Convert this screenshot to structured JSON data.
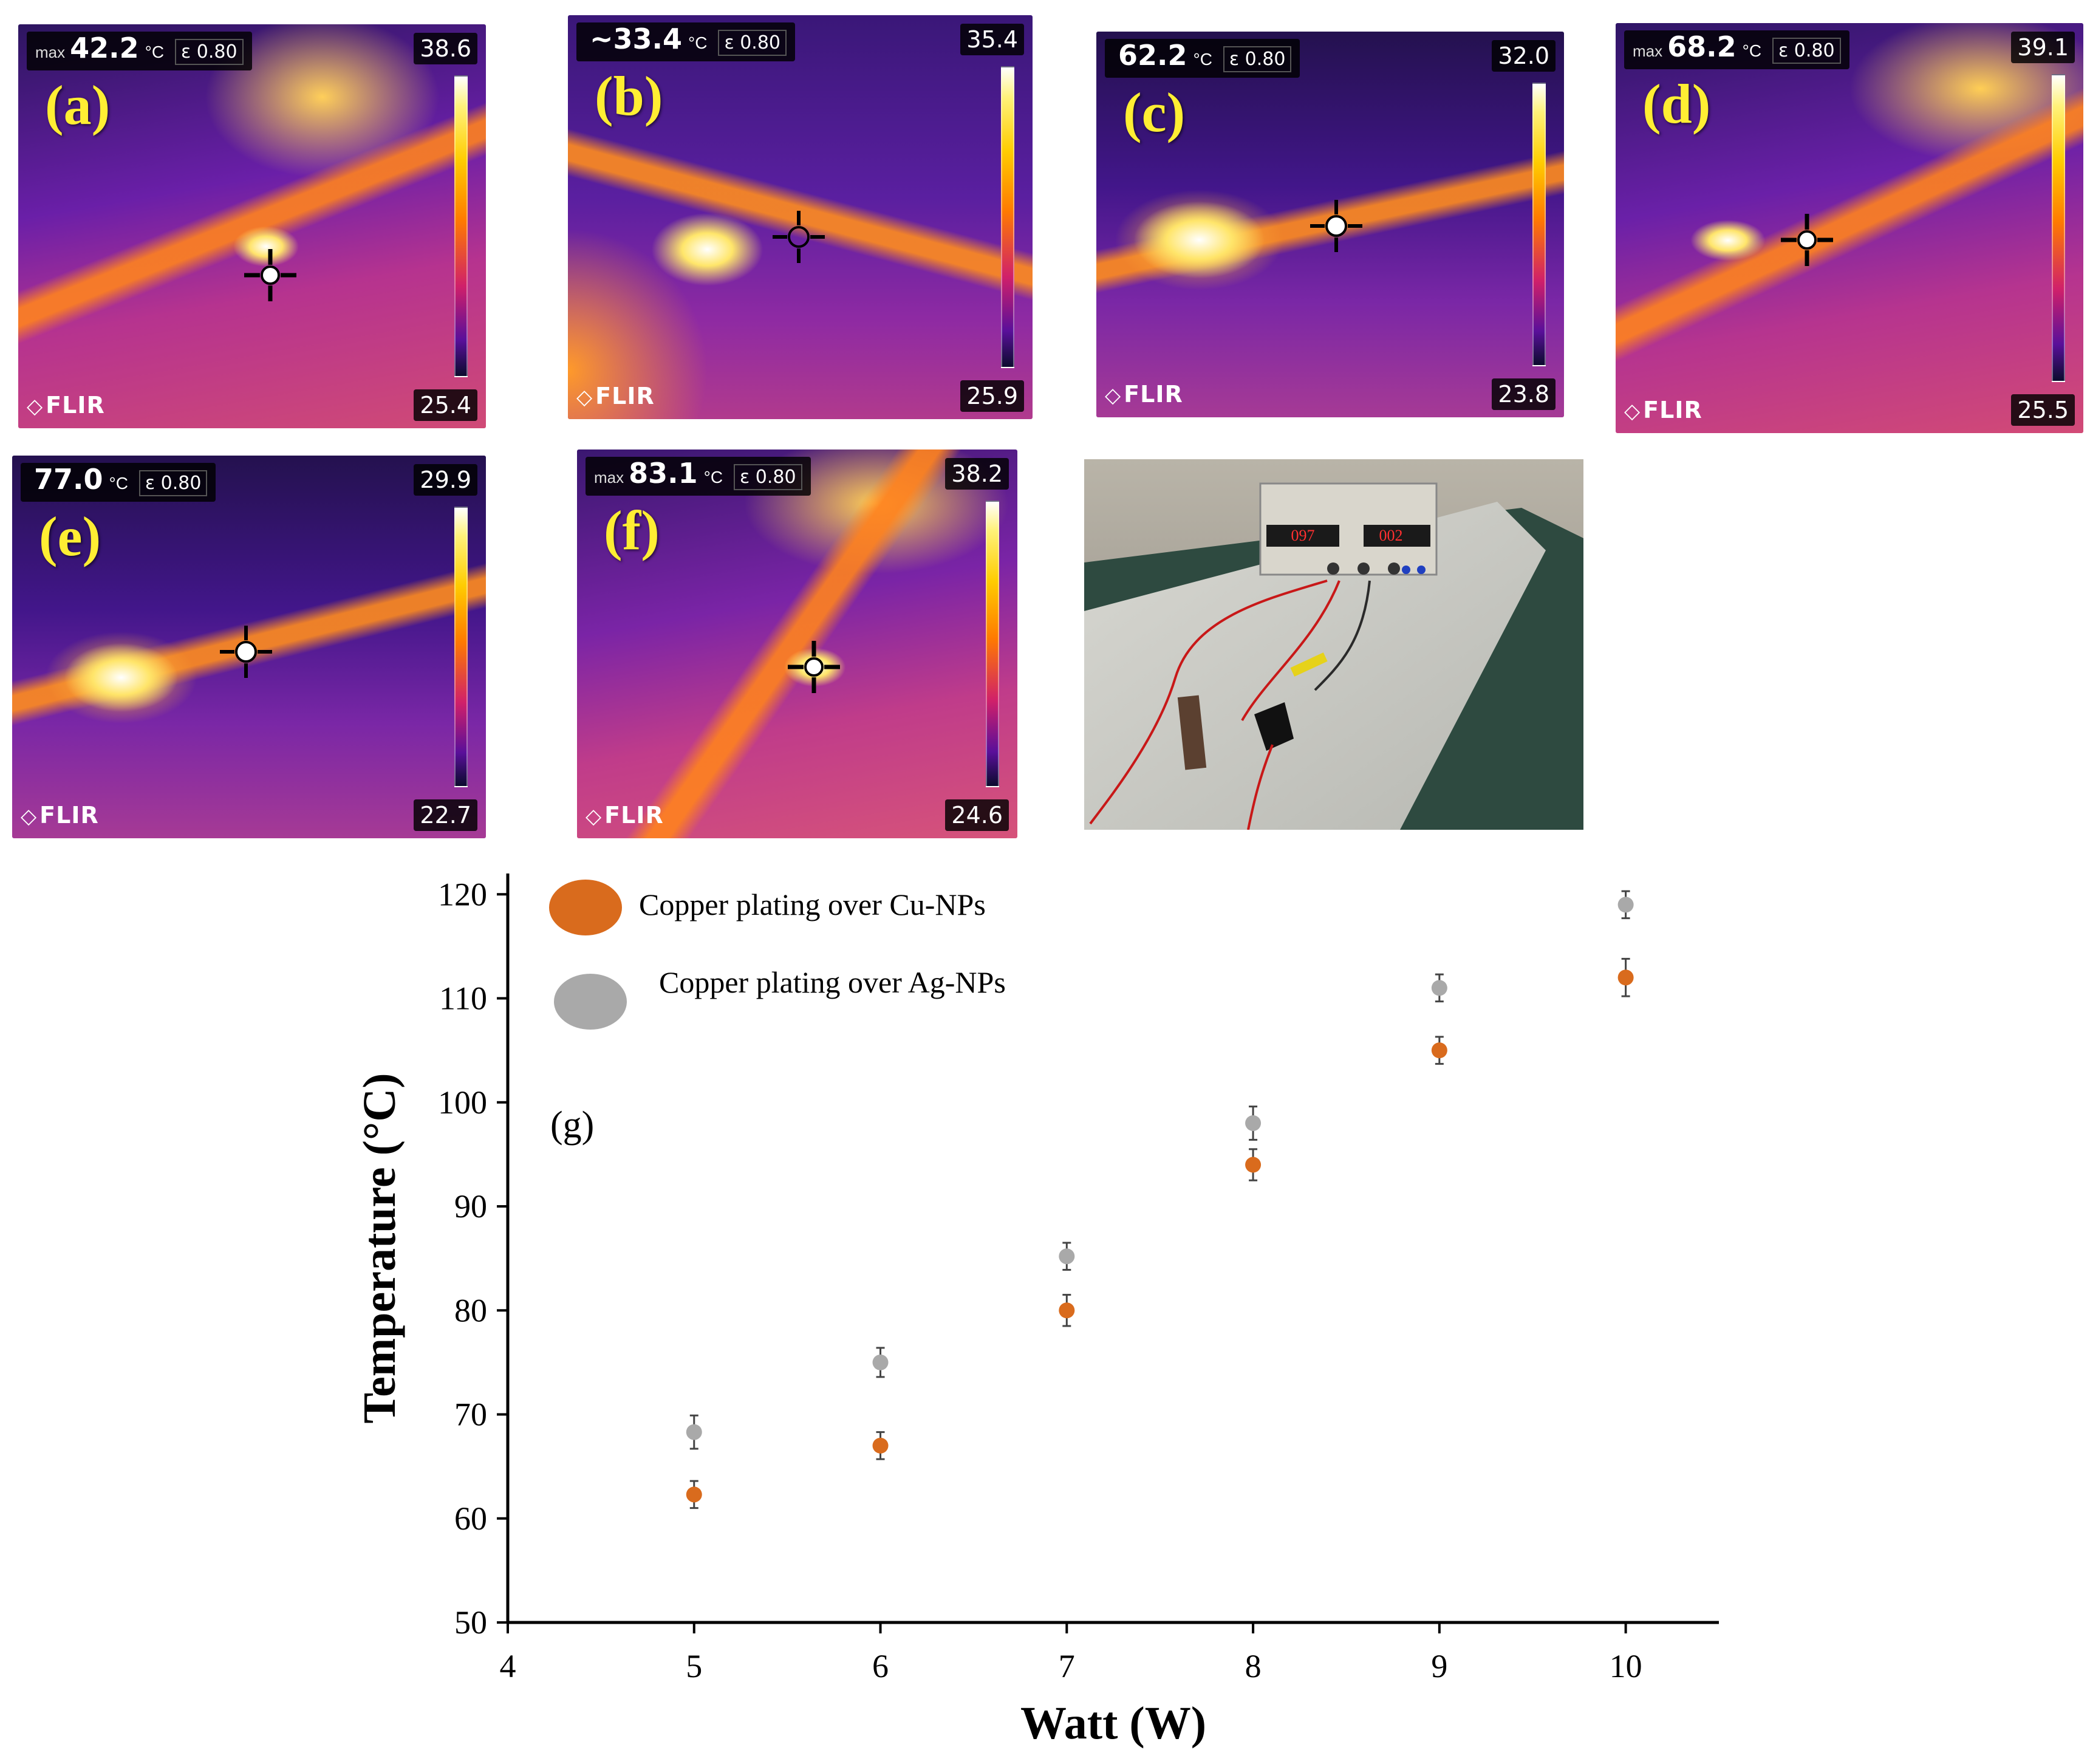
{
  "thermal_panels": [
    {
      "label": "(a)",
      "prefix": "max",
      "reading": "42.2",
      "unit": "°C",
      "emissivity": "ε 0.80",
      "scale_max": "38.6",
      "scale_min": "25.4",
      "brand": "FLIR"
    },
    {
      "label": "(b)",
      "prefix": "",
      "reading": "~33.4",
      "unit": "°C",
      "emissivity": "ε 0.80",
      "scale_max": "35.4",
      "scale_min": "25.9",
      "brand": "FLIR"
    },
    {
      "label": "(c)",
      "prefix": "",
      "reading": "62.2",
      "unit": "°C",
      "emissivity": "ε 0.80",
      "scale_max": "32.0",
      "scale_min": "23.8",
      "brand": "FLIR"
    },
    {
      "label": "(d)",
      "prefix": "max",
      "reading": "68.2",
      "unit": "°C",
      "emissivity": "ε 0.80",
      "scale_max": "39.1",
      "scale_min": "25.5",
      "brand": "FLIR"
    },
    {
      "label": "(e)",
      "prefix": "",
      "reading": "77.0",
      "unit": "°C",
      "emissivity": "ε 0.80",
      "scale_max": "29.9",
      "scale_min": "22.7",
      "brand": "FLIR"
    },
    {
      "label": "(f)",
      "prefix": "max",
      "reading": "83.1",
      "unit": "°C",
      "emissivity": "ε 0.80",
      "scale_max": "38.2",
      "scale_min": "24.6",
      "brand": "FLIR"
    }
  ],
  "photo": {
    "display_left": "097",
    "display_right": "002"
  },
  "chart_data": {
    "type": "scatter",
    "panel_label": "(g)",
    "xlabel": "Watt (W)",
    "ylabel": "Temperature (°C)",
    "xlim": [
      4,
      10.5
    ],
    "ylim": [
      50,
      122
    ],
    "xticks": [
      4,
      5,
      6,
      7,
      8,
      9,
      10
    ],
    "yticks": [
      50,
      60,
      70,
      80,
      90,
      100,
      110,
      120
    ],
    "legend_position": "top-left",
    "series": [
      {
        "name": "Copper plating over Cu-NPs",
        "color": "#d96b1d",
        "x": [
          5,
          6,
          7,
          8,
          9,
          10
        ],
        "y": [
          62.3,
          67,
          80,
          94,
          105,
          112
        ],
        "err": [
          1.3,
          1.3,
          1.5,
          1.5,
          1.3,
          1.8
        ]
      },
      {
        "name": "Copper plating over Ag-NPs",
        "color": "#a9a9a9",
        "x": [
          5,
          6,
          7,
          8,
          9,
          10
        ],
        "y": [
          68.3,
          75,
          85.2,
          98,
          111,
          119
        ],
        "err": [
          1.6,
          1.4,
          1.3,
          1.6,
          1.3,
          1.3
        ]
      }
    ]
  }
}
